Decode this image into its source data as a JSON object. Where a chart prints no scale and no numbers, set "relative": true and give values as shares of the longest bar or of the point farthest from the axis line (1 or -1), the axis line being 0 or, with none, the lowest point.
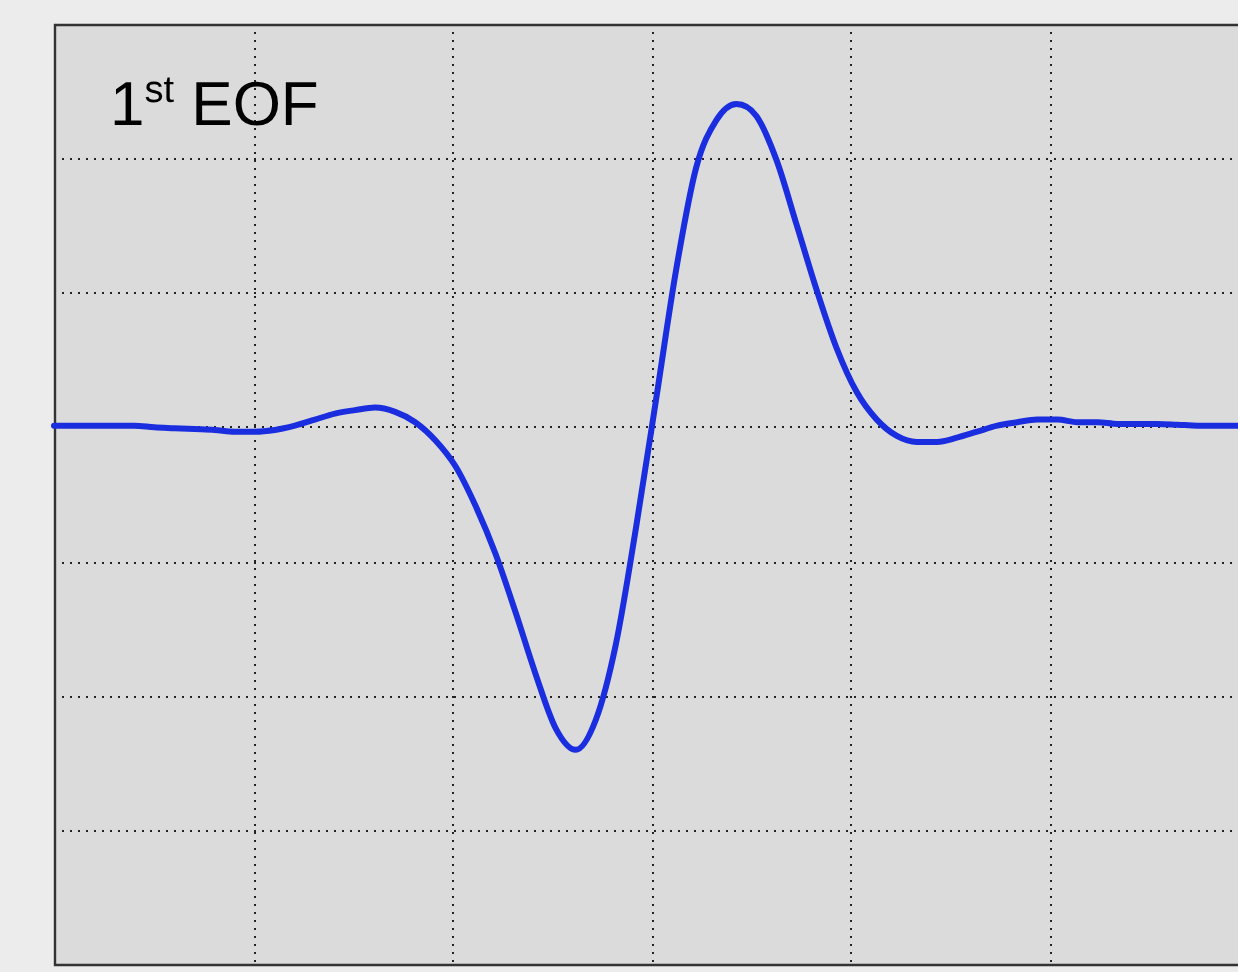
{
  "chart_data": {
    "type": "line",
    "title": "1$^{st}$ EOF",
    "relative": true,
    "grid": true,
    "legend": false,
    "marker": "none",
    "line_style": "solid",
    "categories": [
      null,
      null,
      null,
      null,
      null,
      null,
      null,
      null,
      null,
      null,
      null,
      null,
      null,
      null,
      null,
      null,
      null,
      null,
      null,
      null,
      null,
      null,
      null,
      null,
      null,
      null,
      null,
      null,
      null,
      null,
      null,
      null,
      null,
      null,
      null,
      null,
      null,
      null,
      null,
      null,
      null,
      null,
      null,
      null,
      null,
      null,
      null,
      null,
      null,
      null,
      null,
      null,
      null,
      null,
      null,
      null,
      null,
      null,
      null,
      null
    ],
    "series": [
      {
        "color": "#1a2ee0",
        "values": [
          0.626,
          0.626,
          0.626,
          0.626,
          0.626,
          0.624,
          0.623,
          0.622,
          0.621,
          0.619,
          0.619,
          0.621,
          0.626,
          0.633,
          0.64,
          0.644,
          0.647,
          0.642,
          0.63,
          0.609,
          0.579,
          0.533,
          0.477,
          0.409,
          0.337,
          0.274,
          0.249,
          0.284,
          0.372,
          0.507,
          0.656,
          0.807,
          0.926,
          0.981,
          1,
          0.986,
          0.935,
          0.86,
          0.784,
          0.716,
          0.665,
          0.633,
          0.614,
          0.607,
          0.607,
          0.612,
          0.619,
          0.626,
          0.63,
          0.633,
          0.633,
          0.63,
          0.63,
          0.628,
          0.628,
          0.628,
          0.627,
          0.626,
          0.626,
          0.626
        ]
      }
    ]
  }
}
